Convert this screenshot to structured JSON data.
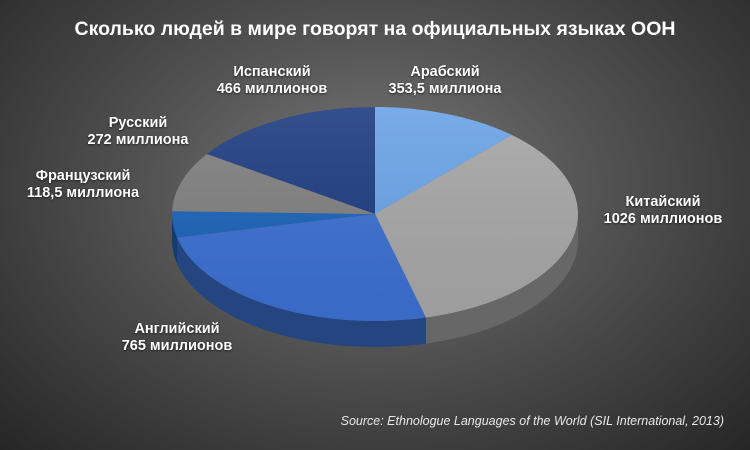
{
  "chart_data": {
    "type": "pie",
    "title": "Сколько людей в мире говорят на официальных языках ООН",
    "slices": [
      {
        "name": "Арабский",
        "value": 353.5,
        "value_label": "353,5 миллиона",
        "color": "#6aa3e6"
      },
      {
        "name": "Китайский",
        "value": 1026,
        "value_label": "1026 миллионов",
        "color": "#a6a6a6"
      },
      {
        "name": "Английский",
        "value": 765,
        "value_label": "765 миллионов",
        "color": "#3b6fd0"
      },
      {
        "name": "Французский",
        "value": 118.5,
        "value_label": "118,5 миллиона",
        "color": "#1c63b8"
      },
      {
        "name": "Русский",
        "value": 272,
        "value_label": "272 миллиона",
        "color": "#7f7f7f"
      },
      {
        "name": "Испанский",
        "value": 466,
        "value_label": "466 миллионов",
        "color": "#1e3c80"
      }
    ],
    "start_angle_deg": 0,
    "direction": "clockwise",
    "style": "3d-tilted",
    "source": "Source: Ethnologue Languages of the World (SIL International, 2013)"
  }
}
